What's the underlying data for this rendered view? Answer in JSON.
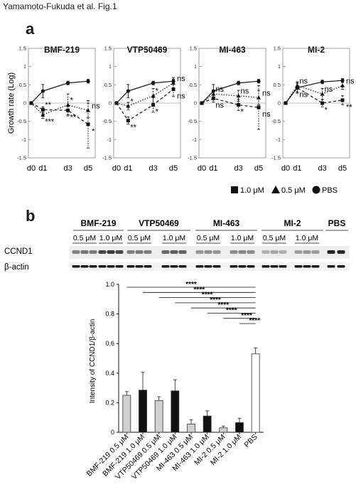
{
  "figure_title": "Yamamoto-Fukuda et al. Fig.1",
  "panel_a": {
    "letter": "a",
    "ylabel": "Growth rate (Log)",
    "yticks": [
      "1.5",
      "1",
      "0.5",
      "0",
      "-0.5",
      "-1",
      "-1.5"
    ],
    "xticks": [
      "d0",
      "d1",
      "d3",
      "d5"
    ],
    "legend": [
      {
        "marker": "square",
        "label": "1.0 μM"
      },
      {
        "marker": "triangle",
        "label": "0.5 μM"
      },
      {
        "marker": "circle",
        "label": "PBS"
      }
    ]
  },
  "panel_b": {
    "letter": "b",
    "blot_headers": [
      "BMF-219",
      "VTP50469",
      "MI-463",
      "MI-2",
      "PBS"
    ],
    "dose_labels": [
      "0.5 μM",
      "1.0 μM",
      "0.5 μM",
      "1.0 μM",
      "0.5 μM",
      "1.0 μM",
      "0.5 μM",
      "1.0 μM"
    ],
    "row_labels": [
      "CCND1",
      "β-actin"
    ],
    "significance": [
      "****",
      "****",
      "****",
      "****",
      "****",
      "****",
      "****",
      "****"
    ]
  },
  "chart_data": [
    {
      "type": "line",
      "title": "BMF-219",
      "xlabel": "",
      "ylabel": "Growth rate (Log)",
      "x": [
        "d0",
        "d1",
        "d3",
        "d5"
      ],
      "ylim": [
        -1.5,
        1.5
      ],
      "series": [
        {
          "name": "PBS",
          "values": [
            0,
            0.33,
            0.55,
            0.6
          ],
          "errors": [
            0,
            0.18,
            0.05,
            0.05
          ]
        },
        {
          "name": "0.5 μM",
          "values": [
            0,
            -0.32,
            -0.05,
            -0.2
          ],
          "errors": [
            0,
            0.1,
            0.3,
            0.2
          ]
        },
        {
          "name": "1.0 μM",
          "values": [
            0,
            -0.18,
            -0.2,
            -0.58
          ],
          "errors": [
            0,
            0.08,
            0.12,
            0.65
          ]
        }
      ],
      "annotations": [
        {
          "x": "d1",
          "series": "1.0 μM",
          "text": "**"
        },
        {
          "x": "d1",
          "series": "0.5 μM",
          "text": "***"
        },
        {
          "x": "d3",
          "series": "0.5 μM",
          "text": "*"
        },
        {
          "x": "d3",
          "series": "1.0 μM",
          "text": "**"
        },
        {
          "x": "d5",
          "series": "0.5 μM",
          "text": "ns"
        },
        {
          "x": "d5",
          "series": "1.0 μM",
          "text": "*"
        }
      ]
    },
    {
      "type": "line",
      "title": "VTP50469",
      "xlabel": "",
      "ylabel": "",
      "x": [
        "d0",
        "d1",
        "d3",
        "d5"
      ],
      "ylim": [
        -1.5,
        1.5
      ],
      "series": [
        {
          "name": "PBS",
          "values": [
            0,
            0.33,
            0.55,
            0.6
          ],
          "errors": [
            0,
            0.18,
            0.05,
            0.05
          ]
        },
        {
          "name": "0.5 μM",
          "values": [
            0,
            -0.08,
            0.2,
            0.55
          ],
          "errors": [
            0,
            0.1,
            0.2,
            0.15
          ]
        },
        {
          "name": "1.0 μM",
          "values": [
            0,
            -0.48,
            -0.05,
            0.38
          ],
          "errors": [
            0,
            0.1,
            0.2,
            0.2
          ]
        }
      ],
      "annotations": [
        {
          "x": "d1",
          "series": "0.5 μM",
          "text": "*"
        },
        {
          "x": "d1",
          "series": "1.0 μM",
          "text": "**"
        },
        {
          "x": "d3",
          "series": "0.5 μM",
          "text": "*"
        },
        {
          "x": "d3",
          "series": "1.0 μM",
          "text": "*"
        },
        {
          "x": "d5",
          "series": "0.5 μM",
          "text": "ns"
        },
        {
          "x": "d5",
          "series": "1.0 μM",
          "text": "ns"
        }
      ]
    },
    {
      "type": "line",
      "title": "MI-463",
      "xlabel": "",
      "ylabel": "",
      "x": [
        "d0",
        "d1",
        "d3",
        "d5"
      ],
      "ylim": [
        -1.5,
        1.5
      ],
      "series": [
        {
          "name": "PBS",
          "values": [
            0,
            0.33,
            0.55,
            0.6
          ],
          "errors": [
            0,
            0.18,
            0.05,
            0.05
          ]
        },
        {
          "name": "0.5 μM",
          "values": [
            0,
            0.25,
            0.2,
            0.15
          ],
          "errors": [
            0,
            0.1,
            0.15,
            0.2
          ]
        },
        {
          "name": "1.0 μM",
          "values": [
            0,
            0.13,
            -0.05,
            -0.12
          ],
          "errors": [
            0,
            0.1,
            0.15,
            0.6
          ]
        }
      ],
      "annotations": [
        {
          "x": "d1",
          "series": "0.5 μM",
          "text": "ns"
        },
        {
          "x": "d1",
          "series": "1.0 μM",
          "text": "ns"
        },
        {
          "x": "d3",
          "series": "0.5 μM",
          "text": "ns"
        },
        {
          "x": "d3",
          "series": "1.0 μM",
          "text": "*"
        },
        {
          "x": "d5",
          "series": "0.5 μM",
          "text": "ns"
        },
        {
          "x": "d5",
          "series": "1.0 μM",
          "text": "ns"
        }
      ]
    },
    {
      "type": "line",
      "title": "MI-2",
      "xlabel": "",
      "ylabel": "",
      "x": [
        "d0",
        "d1",
        "d3",
        "d5"
      ],
      "ylim": [
        -1.5,
        1.5
      ],
      "series": [
        {
          "name": "PBS",
          "values": [
            0,
            0.42,
            0.58,
            0.62
          ],
          "errors": [
            0,
            0.15,
            0.05,
            0.05
          ]
        },
        {
          "name": "0.5 μM",
          "values": [
            0,
            0.48,
            0.25,
            0.48
          ],
          "errors": [
            0,
            0.1,
            0.15,
            0.1
          ]
        },
        {
          "name": "1.0 μM",
          "values": [
            0,
            0.42,
            0.0,
            0.08
          ],
          "errors": [
            0,
            0.12,
            0.1,
            0.12
          ]
        }
      ],
      "annotations": [
        {
          "x": "d1",
          "series": "0.5 μM",
          "text": "ns"
        },
        {
          "x": "d1",
          "series": "1.0 μM",
          "text": "ns"
        },
        {
          "x": "d3",
          "series": "0.5 μM",
          "text": "ns"
        },
        {
          "x": "d3",
          "series": "1.0 μM",
          "text": "*"
        },
        {
          "x": "d5",
          "series": "0.5 μM",
          "text": "ns"
        },
        {
          "x": "d5",
          "series": "1.0 μM",
          "text": "**"
        }
      ]
    },
    {
      "type": "bar",
      "title": "",
      "xlabel": "",
      "ylabel": "Intensity of CCND1/β-actin",
      "categories": [
        "BMF-219 0.5 μM",
        "BMF-219 1.0 μM",
        "VTP50469 0.5 μM",
        "VTP50469 1.0 μM",
        "MI-463 0.5 μM",
        "MI-463 1.0 μM",
        "MI-2 0.5 μM",
        "MI-2 1.0 μM",
        "PBS"
      ],
      "values": [
        0.25,
        0.285,
        0.215,
        0.28,
        0.055,
        0.11,
        0.03,
        0.065,
        0.53
      ],
      "errors": [
        0.025,
        0.12,
        0.025,
        0.075,
        0.03,
        0.035,
        0.012,
        0.03,
        0.04
      ],
      "bar_colors": [
        "#d0d0d0",
        "#111111",
        "#d0d0d0",
        "#111111",
        "#d0d0d0",
        "#111111",
        "#d0d0d0",
        "#111111",
        "#ffffff"
      ],
      "ylim": [
        0,
        1.0
      ],
      "yticks": [
        "0",
        "0.2",
        "0.4",
        "0.6",
        "0.8",
        "1.0"
      ]
    }
  ]
}
